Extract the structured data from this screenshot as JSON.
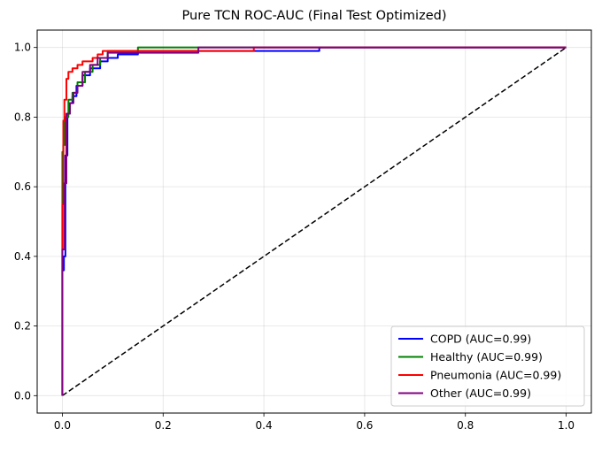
{
  "chart_data": {
    "type": "line",
    "title": "Pure TCN ROC-AUC (Final Test Optimized)",
    "xlabel": "",
    "ylabel": "",
    "xlim": [
      -0.05,
      1.05
    ],
    "ylim": [
      -0.05,
      1.05
    ],
    "xticks": [
      "0.0",
      "0.2",
      "0.4",
      "0.6",
      "0.8",
      "1.0"
    ],
    "yticks": [
      "0.0",
      "0.2",
      "0.4",
      "0.6",
      "0.8",
      "1.0"
    ],
    "grid": true,
    "legend_position": "lower-right",
    "series": [
      {
        "name": "COPD (AUC=0.99)",
        "color": "#0000ff",
        "x": [
          0,
          0.0,
          0.003,
          0.003,
          0.006,
          0.006,
          0.01,
          0.01,
          0.015,
          0.015,
          0.02,
          0.02,
          0.028,
          0.028,
          0.04,
          0.04,
          0.055,
          0.055,
          0.075,
          0.075,
          0.09,
          0.09,
          0.11,
          0.11,
          0.15,
          0.15,
          0.51,
          0.51,
          1.0
        ],
        "y": [
          0,
          0.36,
          0.36,
          0.4,
          0.4,
          0.69,
          0.69,
          0.81,
          0.81,
          0.84,
          0.84,
          0.86,
          0.86,
          0.89,
          0.89,
          0.92,
          0.92,
          0.94,
          0.94,
          0.96,
          0.96,
          0.97,
          0.97,
          0.98,
          0.98,
          0.99,
          0.99,
          1.0,
          1.0
        ]
      },
      {
        "name": "Healthy (AUC=0.99)",
        "color": "#008000",
        "x": [
          0,
          0.0,
          0.002,
          0.002,
          0.005,
          0.005,
          0.012,
          0.012,
          0.02,
          0.02,
          0.03,
          0.03,
          0.045,
          0.045,
          0.06,
          0.06,
          0.075,
          0.075,
          0.09,
          0.09,
          0.15,
          0.15,
          1.0
        ],
        "y": [
          0,
          0.7,
          0.7,
          0.72,
          0.72,
          0.8,
          0.8,
          0.85,
          0.85,
          0.87,
          0.87,
          0.9,
          0.9,
          0.93,
          0.93,
          0.95,
          0.95,
          0.97,
          0.97,
          0.99,
          0.99,
          1.0,
          1.0
        ]
      },
      {
        "name": "Pneumonia (AUC=0.99)",
        "color": "#ff0000",
        "x": [
          0,
          0.0,
          0.002,
          0.002,
          0.004,
          0.004,
          0.008,
          0.008,
          0.012,
          0.012,
          0.02,
          0.02,
          0.03,
          0.03,
          0.04,
          0.04,
          0.06,
          0.06,
          0.07,
          0.07,
          0.08,
          0.08,
          0.38,
          0.38,
          1.0
        ],
        "y": [
          0,
          0.55,
          0.55,
          0.79,
          0.79,
          0.85,
          0.85,
          0.91,
          0.91,
          0.93,
          0.93,
          0.94,
          0.94,
          0.95,
          0.95,
          0.96,
          0.96,
          0.97,
          0.97,
          0.98,
          0.98,
          0.99,
          0.99,
          1.0,
          1.0
        ]
      },
      {
        "name": "Other (AUC=0.99)",
        "color": "#800080",
        "x": [
          0,
          0.0,
          0.004,
          0.004,
          0.008,
          0.008,
          0.015,
          0.015,
          0.022,
          0.022,
          0.03,
          0.03,
          0.04,
          0.04,
          0.055,
          0.055,
          0.07,
          0.07,
          0.09,
          0.09,
          0.27,
          0.27,
          1.0
        ],
        "y": [
          0,
          0.42,
          0.42,
          0.61,
          0.61,
          0.81,
          0.81,
          0.84,
          0.84,
          0.87,
          0.87,
          0.89,
          0.89,
          0.93,
          0.93,
          0.95,
          0.95,
          0.97,
          0.97,
          0.985,
          0.985,
          1.0,
          1.0
        ]
      }
    ],
    "reference_line": {
      "color": "#000000",
      "dash": "dashed",
      "x": [
        0,
        1
      ],
      "y": [
        0,
        1
      ]
    }
  }
}
